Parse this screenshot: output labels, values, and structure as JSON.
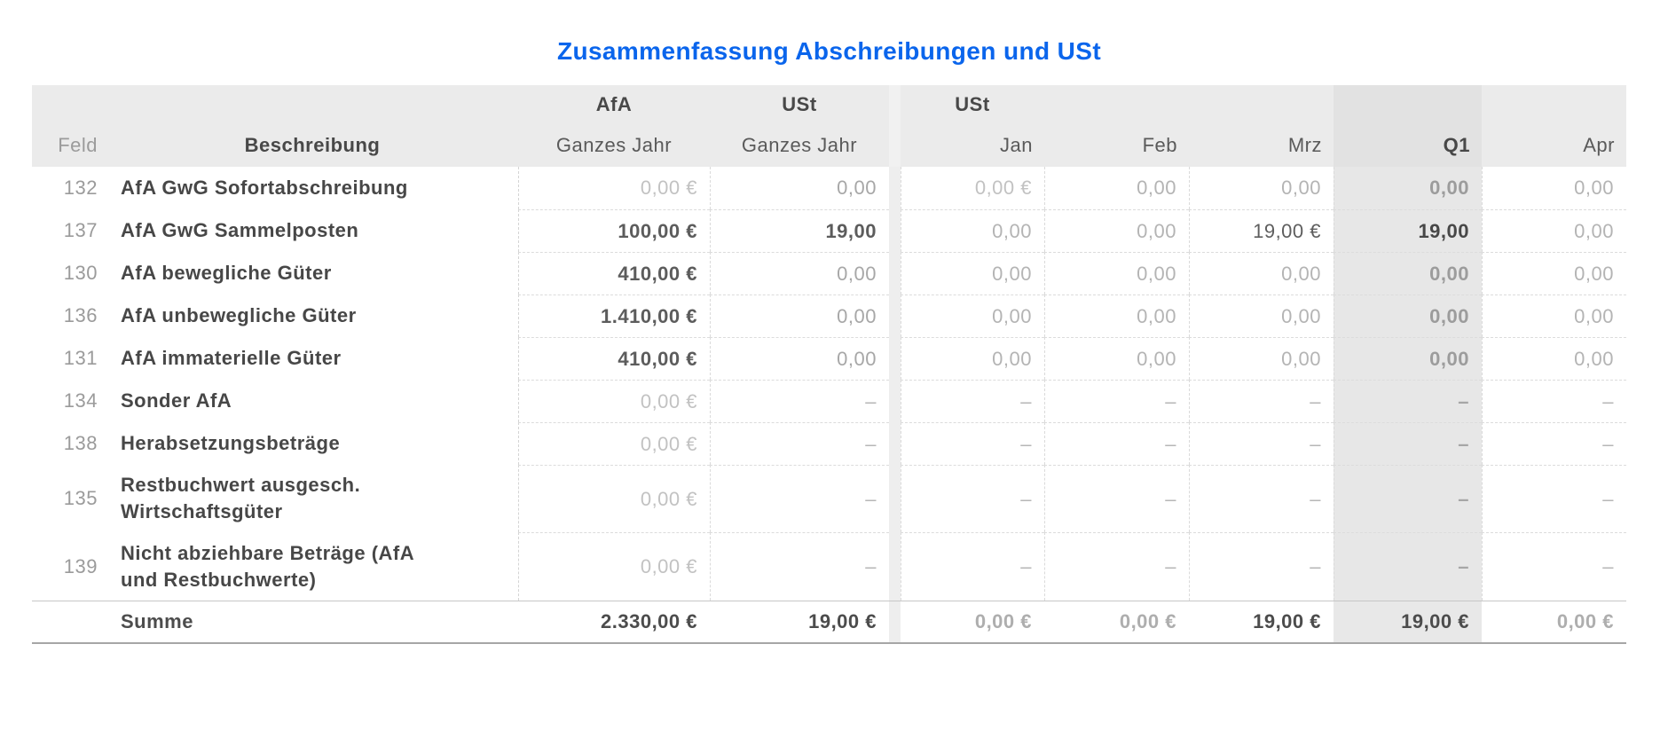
{
  "title": "Zusammenfassung Abschreibungen und USt",
  "colors": {
    "title_blue": "#0a65ec",
    "header_bg": "#ebebeb",
    "q1_column_bg": "#e7e7e7",
    "section_divider_bg": "#eeeeee",
    "dark_value": "#5c5c5c",
    "muted_value": "#b4b4b4"
  },
  "table": {
    "header": {
      "feld": "Feld",
      "beschreibung": "Beschreibung",
      "groups": {
        "afa": "AfA",
        "ust_year": "USt",
        "ust_months": "USt"
      },
      "afa_year": "Ganzes Jahr",
      "ust_year": "Ganzes Jahr",
      "months": [
        "Jan",
        "Feb",
        "Mrz",
        "Q1",
        "Apr"
      ]
    },
    "rows": [
      {
        "feld": "132",
        "beschreibung": "AfA GwG Sofortabschreibung",
        "tall": false,
        "cells": [
          {
            "text": "0,00 €",
            "tone": "zl"
          },
          {
            "text": "0,00",
            "tone": "zm"
          },
          {
            "text": "0,00 €",
            "tone": "zl"
          },
          {
            "text": "0,00",
            "tone": "z"
          },
          {
            "text": "0,00",
            "tone": "z"
          },
          {
            "text": "0,00",
            "tone": "qz"
          },
          {
            "text": "0,00",
            "tone": "z"
          }
        ]
      },
      {
        "feld": "137",
        "beschreibung": "AfA GwG Sammelposten",
        "tall": false,
        "cells": [
          {
            "text": "100,00 €",
            "tone": "dark"
          },
          {
            "text": "19,00",
            "tone": "dark"
          },
          {
            "text": "0,00",
            "tone": "z"
          },
          {
            "text": "0,00",
            "tone": "z"
          },
          {
            "text": "19,00 €",
            "tone": "darkreg"
          },
          {
            "text": "19,00",
            "tone": "qd"
          },
          {
            "text": "0,00",
            "tone": "z"
          }
        ]
      },
      {
        "feld": "130",
        "beschreibung": "AfA bewegliche Güter",
        "tall": false,
        "cells": [
          {
            "text": "410,00 €",
            "tone": "dark"
          },
          {
            "text": "0,00",
            "tone": "zm"
          },
          {
            "text": "0,00",
            "tone": "z"
          },
          {
            "text": "0,00",
            "tone": "z"
          },
          {
            "text": "0,00",
            "tone": "z"
          },
          {
            "text": "0,00",
            "tone": "qz"
          },
          {
            "text": "0,00",
            "tone": "z"
          }
        ]
      },
      {
        "feld": "136",
        "beschreibung": "AfA unbewegliche Güter",
        "tall": false,
        "cells": [
          {
            "text": "1.410,00 €",
            "tone": "dark"
          },
          {
            "text": "0,00",
            "tone": "zm"
          },
          {
            "text": "0,00",
            "tone": "z"
          },
          {
            "text": "0,00",
            "tone": "z"
          },
          {
            "text": "0,00",
            "tone": "z"
          },
          {
            "text": "0,00",
            "tone": "qz"
          },
          {
            "text": "0,00",
            "tone": "z"
          }
        ]
      },
      {
        "feld": "131",
        "beschreibung": "AfA immaterielle Güter",
        "tall": false,
        "cells": [
          {
            "text": "410,00 €",
            "tone": "dark"
          },
          {
            "text": "0,00",
            "tone": "zm"
          },
          {
            "text": "0,00",
            "tone": "z"
          },
          {
            "text": "0,00",
            "tone": "z"
          },
          {
            "text": "0,00",
            "tone": "z"
          },
          {
            "text": "0,00",
            "tone": "qz"
          },
          {
            "text": "0,00",
            "tone": "z"
          }
        ]
      },
      {
        "feld": "134",
        "beschreibung": "Sonder AfA",
        "tall": false,
        "cells": [
          {
            "text": "0,00 €",
            "tone": "zl"
          },
          {
            "text": "–",
            "tone": "dash"
          },
          {
            "text": "–",
            "tone": "dash"
          },
          {
            "text": "–",
            "tone": "dash"
          },
          {
            "text": "–",
            "tone": "dash"
          },
          {
            "text": "–",
            "tone": "qdash"
          },
          {
            "text": "–",
            "tone": "dash"
          }
        ]
      },
      {
        "feld": "138",
        "beschreibung": "Herabsetzungsbeträge",
        "tall": false,
        "cells": [
          {
            "text": "0,00 €",
            "tone": "zl"
          },
          {
            "text": "–",
            "tone": "dash"
          },
          {
            "text": "–",
            "tone": "dash"
          },
          {
            "text": "–",
            "tone": "dash"
          },
          {
            "text": "–",
            "tone": "dash"
          },
          {
            "text": "–",
            "tone": "qdash"
          },
          {
            "text": "–",
            "tone": "dash"
          }
        ]
      },
      {
        "feld": "135",
        "beschreibung": "Restbuchwert ausgesch.\nWirtschaftsgüter",
        "tall": true,
        "cells": [
          {
            "text": "0,00 €",
            "tone": "zl"
          },
          {
            "text": "–",
            "tone": "dash"
          },
          {
            "text": "–",
            "tone": "dash"
          },
          {
            "text": "–",
            "tone": "dash"
          },
          {
            "text": "–",
            "tone": "dash"
          },
          {
            "text": "–",
            "tone": "qdash"
          },
          {
            "text": "–",
            "tone": "dash"
          }
        ]
      },
      {
        "feld": "139",
        "beschreibung": "Nicht abziehbare Beträge (AfA\nund Restbuchwerte)",
        "tall": true,
        "cells": [
          {
            "text": "0,00 €",
            "tone": "zl"
          },
          {
            "text": "–",
            "tone": "dash"
          },
          {
            "text": "–",
            "tone": "dash"
          },
          {
            "text": "–",
            "tone": "dash"
          },
          {
            "text": "–",
            "tone": "dash"
          },
          {
            "text": "–",
            "tone": "qdash"
          },
          {
            "text": "–",
            "tone": "dash"
          }
        ]
      }
    ],
    "summary": {
      "label": "Summe",
      "cells": [
        {
          "text": "2.330,00 €",
          "tone": "sd"
        },
        {
          "text": "19,00 €",
          "tone": "sd"
        },
        {
          "text": "0,00 €",
          "tone": "sg"
        },
        {
          "text": "0,00 €",
          "tone": "sg"
        },
        {
          "text": "19,00 €",
          "tone": "sd"
        },
        {
          "text": "19,00 €",
          "tone": "sd"
        },
        {
          "text": "0,00 €",
          "tone": "sg"
        }
      ]
    }
  }
}
